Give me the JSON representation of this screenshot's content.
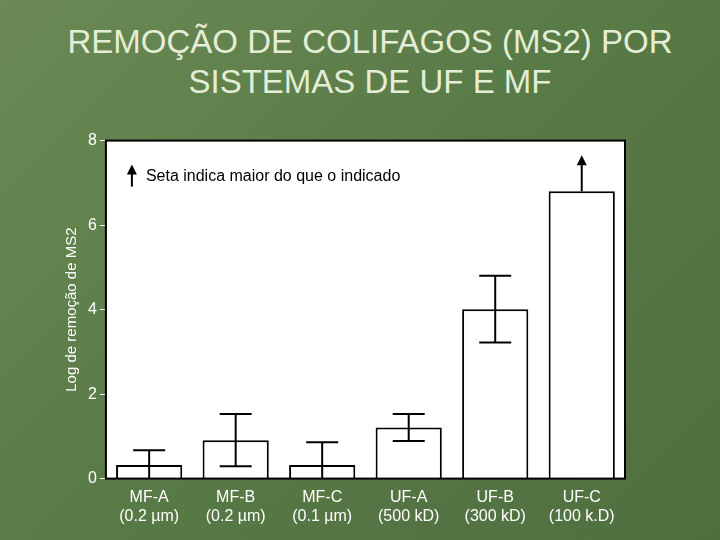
{
  "chart_data": {
    "type": "bar",
    "title": "REMOÇÃO DE COLIFAGOS (MS2) POR SISTEMAS DE UF E MF",
    "y_label": "Log de remoção de MS2",
    "annotation": "Seta indica maior do que o indicado",
    "categories": [
      [
        "MF-A",
        "(0.2 µm)"
      ],
      [
        "MF-B",
        "(0.2 µm)"
      ],
      [
        "MF-C",
        "(0.1 µm)"
      ],
      [
        "UF-A",
        "(500 kD)"
      ],
      [
        "UF-B",
        "(300 kD)"
      ],
      [
        "UF-C",
        "(100 k.D)"
      ]
    ],
    "values": [
      0.32,
      0.91,
      0.32,
      1.21,
      4.01,
      6.8
    ],
    "errors": [
      0.35,
      0.62,
      0.54,
      0.32,
      0.79,
      null
    ],
    "greater_than": [
      false,
      false,
      false,
      false,
      false,
      true
    ],
    "color": "#ffffff",
    "ylim": [
      0,
      8
    ],
    "yticks": [
      0,
      2,
      4,
      6,
      8
    ],
    "grid": false
  }
}
